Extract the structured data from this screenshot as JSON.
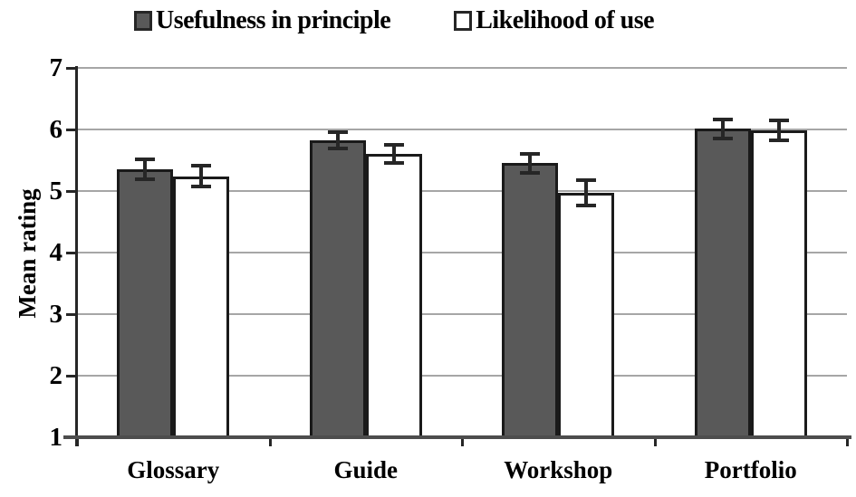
{
  "chart_data": {
    "type": "bar",
    "title": "",
    "ylabel": "Mean rating",
    "xlabel": "",
    "ylim": [
      1,
      7
    ],
    "yticks": [
      7,
      6,
      5,
      4,
      3,
      2,
      1
    ],
    "grid": true,
    "legend_position": "top",
    "categories": [
      "Glossary",
      "Guide",
      "Workshop",
      "Portfolio"
    ],
    "series": [
      {
        "name": "Usefulness in principle",
        "values": [
          5.35,
          5.82,
          5.45,
          6.01
        ],
        "errors": [
          0.16,
          0.13,
          0.15,
          0.15
        ],
        "fill": "#595959"
      },
      {
        "name": "Likelihood of use",
        "values": [
          5.24,
          5.6,
          4.97,
          5.98
        ],
        "errors": [
          0.17,
          0.15,
          0.2,
          0.16
        ],
        "fill": "#ffffff"
      }
    ]
  },
  "colors": {
    "background": "#ffffff",
    "bar_border": "#1a1a1a",
    "gridline": "#a6a6a6",
    "axis_line": "#262626",
    "baseline": "#4d4d4d",
    "error_bar": "#262626",
    "text": "#000000"
  }
}
